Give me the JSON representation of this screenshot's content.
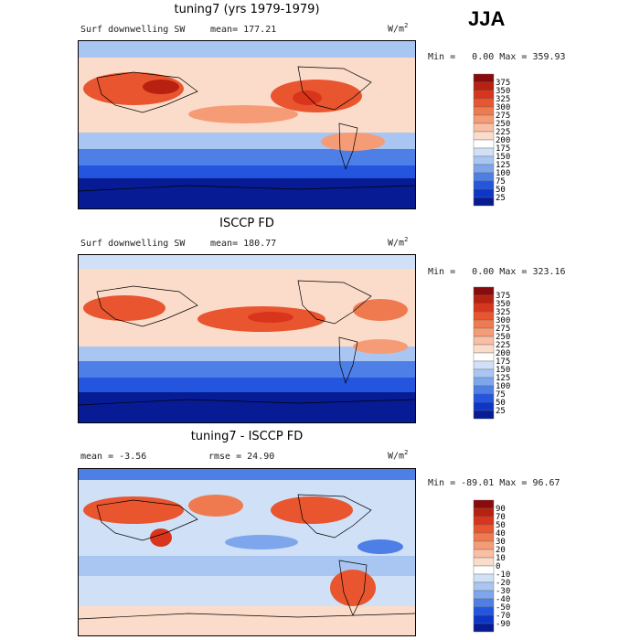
{
  "season": "JJA",
  "panels": [
    {
      "title": "tuning7 (yrs 1979-1979)",
      "left_label": "Surf downwelling SW",
      "center_label": "mean= 177.21",
      "units": "W/m",
      "units_sup": "2",
      "min_label": "Min =",
      "min_value": "0.00",
      "max_label": "Max =",
      "max_value": "359.93",
      "levels": [
        "375",
        "350",
        "325",
        "300",
        "275",
        "250",
        "225",
        "200",
        "175",
        "150",
        "125",
        "100",
        "75",
        "50",
        "25"
      ],
      "colors": [
        "#8a0b0b",
        "#b8200f",
        "#d9341c",
        "#e8552f",
        "#f07a4f",
        "#f59c77",
        "#f9bea3",
        "#fbdcca",
        "#ffffff",
        "#cfe0f7",
        "#a9c6f2",
        "#7da6ec",
        "#4d7fe6",
        "#2455de",
        "#0c36c8",
        "#071c94"
      ]
    },
    {
      "title": "ISCCP FD",
      "left_label": "Surf downwelling SW",
      "center_label": "mean= 180.77",
      "units": "W/m",
      "units_sup": "2",
      "min_label": "Min =",
      "min_value": "0.00",
      "max_label": "Max =",
      "max_value": "323.16",
      "levels": [
        "375",
        "350",
        "325",
        "300",
        "275",
        "250",
        "225",
        "200",
        "175",
        "150",
        "125",
        "100",
        "75",
        "50",
        "25"
      ],
      "colors": [
        "#8a0b0b",
        "#b8200f",
        "#d9341c",
        "#e8552f",
        "#f07a4f",
        "#f59c77",
        "#f9bea3",
        "#fbdcca",
        "#ffffff",
        "#cfe0f7",
        "#a9c6f2",
        "#7da6ec",
        "#4d7fe6",
        "#2455de",
        "#0c36c8",
        "#071c94"
      ]
    },
    {
      "title": "tuning7 - ISCCP FD",
      "left_label": "mean =   -3.56",
      "center_label": "rmse =  24.90",
      "units": "W/m",
      "units_sup": "2",
      "min_label": "Min =",
      "min_value": "-89.01",
      "max_label": "Max =",
      "max_value": "96.67",
      "levels": [
        "90",
        "70",
        "50",
        "40",
        "30",
        "20",
        "10",
        "0",
        "-10",
        "-20",
        "-30",
        "-40",
        "-50",
        "-70",
        "-90"
      ],
      "colors": [
        "#8a0b0b",
        "#b8200f",
        "#d9341c",
        "#e8552f",
        "#f07a4f",
        "#f59c77",
        "#f9bea3",
        "#fbdcca",
        "#ffffff",
        "#cfe0f7",
        "#a9c6f2",
        "#7da6ec",
        "#4d7fe6",
        "#2455de",
        "#0c36c8",
        "#071c94"
      ]
    }
  ],
  "chart_data": [
    {
      "type": "heatmap",
      "title": "tuning7 (yrs 1979-1979)",
      "variable": "Surf downwelling SW",
      "season": "JJA",
      "units": "W/m^2",
      "mean": 177.21,
      "min": 0.0,
      "max": 359.93,
      "colorbar_levels": [
        25,
        50,
        75,
        100,
        125,
        150,
        175,
        200,
        225,
        250,
        275,
        300,
        325,
        350,
        375
      ]
    },
    {
      "type": "heatmap",
      "title": "ISCCP FD",
      "variable": "Surf downwelling SW",
      "season": "JJA",
      "units": "W/m^2",
      "mean": 180.77,
      "min": 0.0,
      "max": 323.16,
      "colorbar_levels": [
        25,
        50,
        75,
        100,
        125,
        150,
        175,
        200,
        225,
        250,
        275,
        300,
        325,
        350,
        375
      ]
    },
    {
      "type": "heatmap",
      "title": "tuning7 - ISCCP FD",
      "season": "JJA",
      "units": "W/m^2",
      "mean": -3.56,
      "rmse": 24.9,
      "min": -89.01,
      "max": 96.67,
      "colorbar_levels": [
        -90,
        -70,
        -50,
        -40,
        -30,
        -20,
        -10,
        0,
        10,
        20,
        30,
        40,
        50,
        70,
        90
      ]
    }
  ]
}
